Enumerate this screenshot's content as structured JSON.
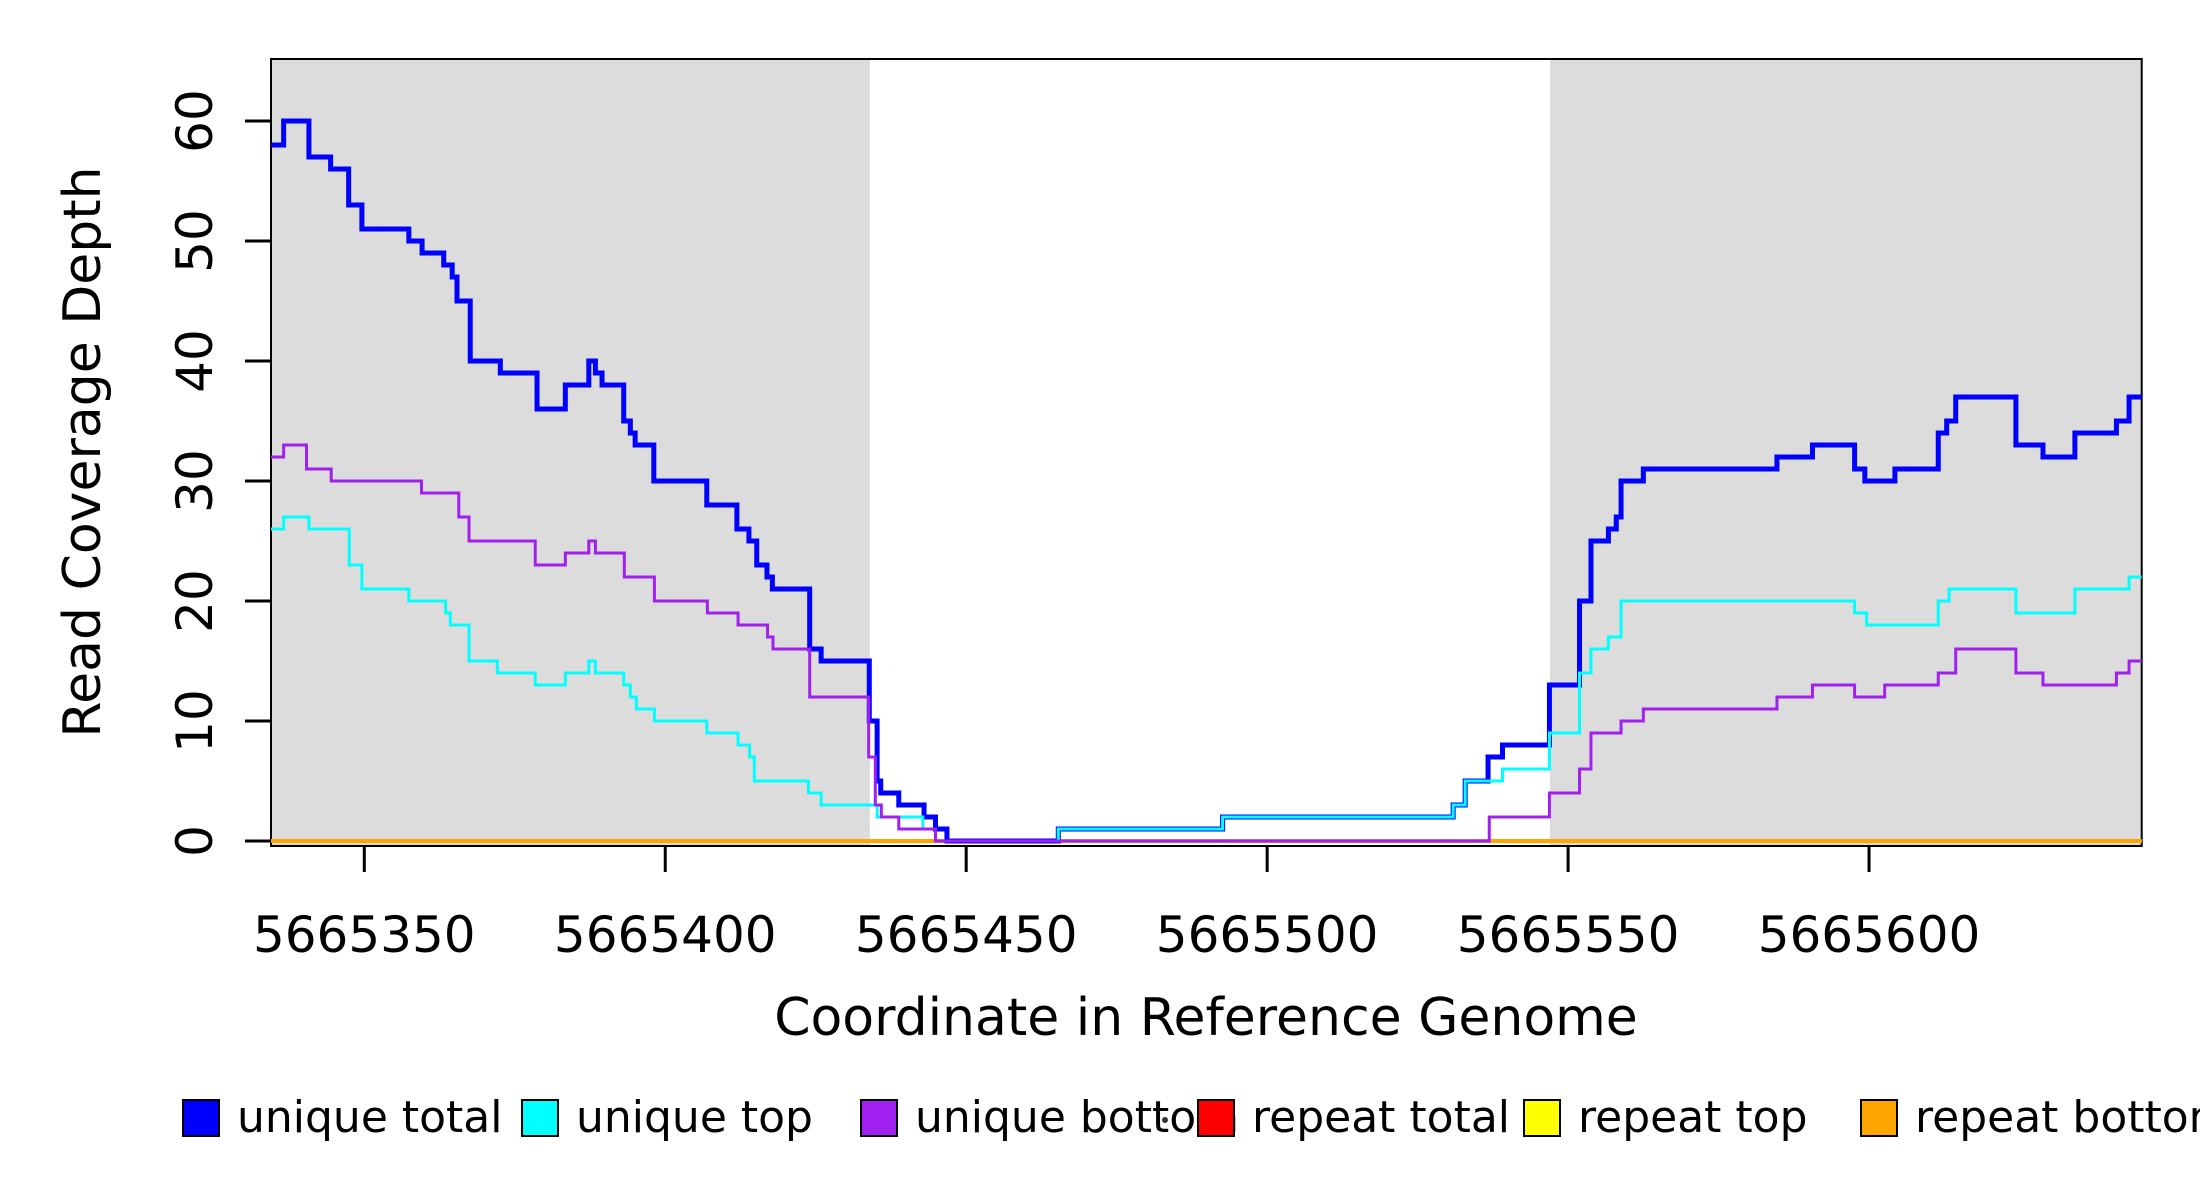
{
  "figure": {
    "x_axis_title": "Coordinate in Reference Genome",
    "y_axis_title": "Read Coverage Depth"
  },
  "legend": {
    "items": [
      {
        "label": "unique total",
        "color": "#0000FF"
      },
      {
        "label": "unique top",
        "color": "#00FFFF"
      },
      {
        "label": "unique bottom",
        "color": "#A020F0"
      },
      {
        "label": "repeat total",
        "color": "#FF0000"
      },
      {
        "label": "repeat top",
        "color": "#FFFF00"
      },
      {
        "label": "repeat bottom",
        "color": "#FFA500"
      }
    ]
  },
  "chart_data": {
    "type": "line",
    "subtype": "step",
    "title": "",
    "xlabel": "Coordinate in Reference Genome",
    "ylabel": "Read Coverage Depth",
    "xlim": [
      5665334.5,
      5665645.3
    ],
    "ylim": [
      0,
      65.3
    ],
    "grid": false,
    "legend_position": "bottom",
    "plot_background": "#FFFFFF",
    "shaded_region_color": "#DCDCDC",
    "shaded_regions": [
      {
        "from": 5665334.5,
        "to": 5665434.0
      },
      {
        "from": 5665547.0,
        "to": 5665645.3
      }
    ],
    "x_ticks": [
      5665350,
      5665400,
      5665450,
      5665500,
      5665550,
      5665600
    ],
    "x_tick_labels": [
      "5665350",
      "5665400",
      "5665450",
      "5665500",
      "5665550",
      "5665600"
    ],
    "y_ticks": [
      0,
      10,
      20,
      30,
      40,
      50,
      60
    ],
    "y_tick_labels": [
      "0",
      "10",
      "20",
      "30",
      "40",
      "50",
      "60"
    ],
    "series": [
      {
        "name": "repeat total",
        "color": "#FF0000",
        "width": 3,
        "step_points": [
          [
            5665334.5,
            0
          ]
        ]
      },
      {
        "name": "repeat top",
        "color": "#FFFF00",
        "width": 3,
        "step_points": [
          [
            5665334.5,
            0
          ]
        ]
      },
      {
        "name": "repeat bottom",
        "color": "#FFA500",
        "width": 4,
        "step_points": [
          [
            5665334.5,
            0
          ]
        ]
      },
      {
        "name": "unique total",
        "color": "#0000FF",
        "width": 5,
        "step_points": [
          [
            5665334.5,
            58
          ],
          [
            5665336.6,
            60
          ],
          [
            5665340.8,
            57
          ],
          [
            5665344.4,
            56
          ],
          [
            5665347.4,
            53
          ],
          [
            5665349.6,
            51
          ],
          [
            5665357.4,
            50
          ],
          [
            5665359.6,
            49
          ],
          [
            5665363.2,
            48
          ],
          [
            5665364.6,
            47
          ],
          [
            5665365.4,
            45
          ],
          [
            5665367.6,
            40
          ],
          [
            5665372.6,
            39
          ],
          [
            5665378.7,
            36
          ],
          [
            5665383.4,
            38
          ],
          [
            5665387.3,
            40
          ],
          [
            5665388.4,
            39
          ],
          [
            5665389.5,
            38
          ],
          [
            5665393.1,
            35
          ],
          [
            5665394.2,
            34
          ],
          [
            5665395.0,
            33
          ],
          [
            5665398.1,
            30
          ],
          [
            5665406.9,
            28
          ],
          [
            5665411.9,
            26
          ],
          [
            5665413.9,
            25
          ],
          [
            5665415.2,
            23
          ],
          [
            5665416.9,
            22
          ],
          [
            5665417.8,
            21
          ],
          [
            5665424.0,
            16
          ],
          [
            5665425.9,
            15
          ],
          [
            5665433.9,
            10
          ],
          [
            5665435.2,
            5
          ],
          [
            5665435.8,
            4
          ],
          [
            5665438.8,
            3
          ],
          [
            5665443.0,
            2
          ],
          [
            5665444.9,
            1
          ],
          [
            5665446.8,
            0
          ],
          [
            5665465.3,
            1
          ],
          [
            5665492.6,
            2
          ],
          [
            5665530.9,
            3
          ],
          [
            5665532.9,
            5
          ],
          [
            5665536.7,
            7
          ],
          [
            5665539.1,
            8
          ],
          [
            5665546.9,
            13
          ],
          [
            5665551.9,
            20
          ],
          [
            5665553.8,
            25
          ],
          [
            5665556.7,
            26
          ],
          [
            5665558.0,
            27
          ],
          [
            5665558.8,
            30
          ],
          [
            5665562.5,
            31
          ],
          [
            5665584.7,
            32
          ],
          [
            5665590.6,
            33
          ],
          [
            5665597.6,
            31
          ],
          [
            5665599.3,
            30
          ],
          [
            5665604.3,
            31
          ],
          [
            5665611.5,
            34
          ],
          [
            5665612.9,
            35
          ],
          [
            5665614.4,
            37
          ],
          [
            5665624.4,
            33
          ],
          [
            5665628.9,
            32
          ],
          [
            5665634.2,
            34
          ],
          [
            5665641.1,
            35
          ],
          [
            5665643.2,
            37
          ]
        ]
      },
      {
        "name": "unique top",
        "color": "#00FFFF",
        "width": 3,
        "step_points": [
          [
            5665334.5,
            26
          ],
          [
            5665336.6,
            27
          ],
          [
            5665340.8,
            26
          ],
          [
            5665347.5,
            23
          ],
          [
            5665349.6,
            21
          ],
          [
            5665357.4,
            20
          ],
          [
            5665363.5,
            19
          ],
          [
            5665364.3,
            18
          ],
          [
            5665367.4,
            15
          ],
          [
            5665372.1,
            14
          ],
          [
            5665378.4,
            13
          ],
          [
            5665383.4,
            14
          ],
          [
            5665387.3,
            15
          ],
          [
            5665388.4,
            14
          ],
          [
            5665393.1,
            13
          ],
          [
            5665394.2,
            12
          ],
          [
            5665395.2,
            11
          ],
          [
            5665398.2,
            10
          ],
          [
            5665406.9,
            9
          ],
          [
            5665412.1,
            8
          ],
          [
            5665414.0,
            7
          ],
          [
            5665414.8,
            5
          ],
          [
            5665423.8,
            4
          ],
          [
            5665425.9,
            3
          ],
          [
            5665435.2,
            2
          ],
          [
            5665442.8,
            1
          ],
          [
            5665444.9,
            0
          ],
          [
            5665465.3,
            1
          ],
          [
            5665492.6,
            2
          ],
          [
            5665530.9,
            3
          ],
          [
            5665532.9,
            5
          ],
          [
            5665539.1,
            6
          ],
          [
            5665546.9,
            9
          ],
          [
            5665551.9,
            14
          ],
          [
            5665553.8,
            16
          ],
          [
            5665556.7,
            17
          ],
          [
            5665558.8,
            20
          ],
          [
            5665597.6,
            19
          ],
          [
            5665599.6,
            18
          ],
          [
            5665611.5,
            20
          ],
          [
            5665613.3,
            21
          ],
          [
            5665624.4,
            19
          ],
          [
            5665634.2,
            21
          ],
          [
            5665643.2,
            22
          ]
        ]
      },
      {
        "name": "unique bottom",
        "color": "#A020F0",
        "width": 3,
        "step_points": [
          [
            5665334.5,
            32
          ],
          [
            5665336.6,
            33
          ],
          [
            5665340.4,
            31
          ],
          [
            5665344.5,
            30
          ],
          [
            5665359.5,
            29
          ],
          [
            5665365.7,
            27
          ],
          [
            5665367.4,
            25
          ],
          [
            5665378.4,
            23
          ],
          [
            5665383.4,
            24
          ],
          [
            5665387.3,
            25
          ],
          [
            5665388.4,
            24
          ],
          [
            5665393.2,
            22
          ],
          [
            5665398.2,
            20
          ],
          [
            5665407.0,
            19
          ],
          [
            5665412.1,
            18
          ],
          [
            5665417.0,
            17
          ],
          [
            5665417.9,
            16
          ],
          [
            5665424.0,
            12
          ],
          [
            5665433.8,
            7
          ],
          [
            5665434.9,
            3
          ],
          [
            5665435.9,
            2
          ],
          [
            5665438.8,
            1
          ],
          [
            5665444.9,
            0
          ],
          [
            5665536.9,
            2
          ],
          [
            5665546.9,
            4
          ],
          [
            5665551.9,
            6
          ],
          [
            5665553.8,
            9
          ],
          [
            5665558.8,
            10
          ],
          [
            5665562.5,
            11
          ],
          [
            5665584.7,
            12
          ],
          [
            5665590.6,
            13
          ],
          [
            5665597.6,
            12
          ],
          [
            5665602.6,
            13
          ],
          [
            5665611.5,
            14
          ],
          [
            5665614.4,
            16
          ],
          [
            5665624.4,
            14
          ],
          [
            5665628.9,
            13
          ],
          [
            5665641.1,
            14
          ],
          [
            5665643.2,
            15
          ]
        ]
      }
    ]
  }
}
